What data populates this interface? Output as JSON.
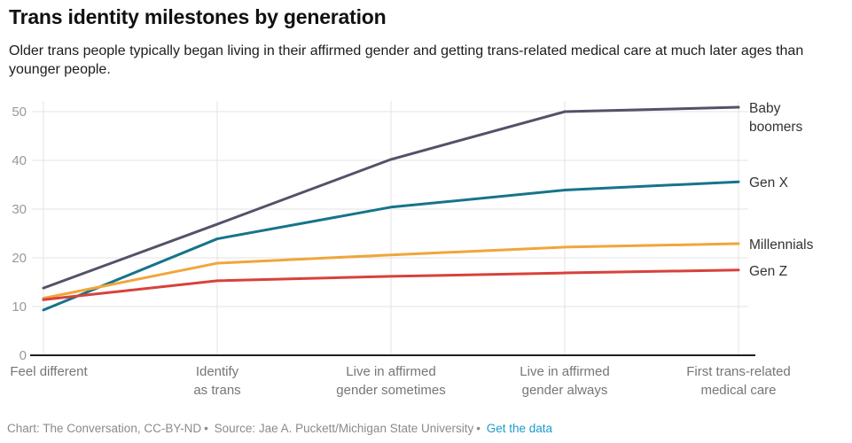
{
  "header": {
    "title": "Trans identity milestones by generation",
    "subtitle": "Older trans people typically began living in their affirmed gender and getting trans-related medical care at much later ages than younger people."
  },
  "chart_data": {
    "type": "line",
    "title": "Trans identity milestones by generation",
    "categories": [
      "Feel different",
      "Identify as trans",
      "Live in affirmed gender sometimes",
      "Live in affirmed gender always",
      "First trans-related medical care"
    ],
    "tick_label_lines": [
      [
        "Feel different"
      ],
      [
        "Identify",
        "as trans"
      ],
      [
        "Live in affirmed",
        "gender sometimes"
      ],
      [
        "Live in affirmed",
        "gender always"
      ],
      [
        "First trans-related",
        "medical care"
      ]
    ],
    "series": [
      {
        "name": "Baby boomers",
        "label_lines": [
          "Baby",
          "boomers"
        ],
        "color": "#555168",
        "values": [
          13.8,
          26.9,
          40.2,
          50.0,
          50.9
        ]
      },
      {
        "name": "Gen X",
        "label_lines": [
          "Gen X"
        ],
        "color": "#16748a",
        "values": [
          9.3,
          23.9,
          30.4,
          33.9,
          35.6
        ]
      },
      {
        "name": "Millennials",
        "label_lines": [
          "Millennials"
        ],
        "color": "#f0a63a",
        "values": [
          11.7,
          18.9,
          20.6,
          22.2,
          22.9
        ]
      },
      {
        "name": "Gen Z",
        "label_lines": [
          "Gen Z"
        ],
        "color": "#d7423b",
        "values": [
          11.4,
          15.3,
          16.2,
          16.9,
          17.5
        ]
      }
    ],
    "xlabel": "",
    "ylabel": "",
    "ylim": [
      0,
      55
    ],
    "yticks": [
      0,
      10,
      20,
      30,
      40,
      50
    ],
    "grid": "on",
    "legend_position": "right-direct-labels"
  },
  "colors": {
    "grid": "#e3e3e3",
    "axis_baseline": "#1f1f1f",
    "ytick_text": "#999999",
    "xtick_text": "#767676",
    "series_label_text": "#333333",
    "link": "#1d9cc9"
  },
  "footer": {
    "credit": "Chart: The Conversation, CC-BY-ND",
    "separator": "•",
    "source": "Source: Jae A. Puckett/Michigan State University",
    "link_label": "Get the data"
  }
}
